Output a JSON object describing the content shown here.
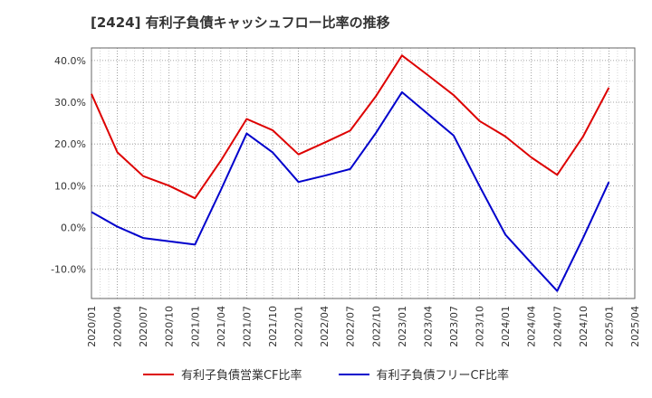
{
  "chart_data": {
    "type": "line",
    "title": "[2424]  有利子負債キャッシュフロー比率の推移",
    "xlabel": "",
    "ylabel": "",
    "x_ticks": [
      "2020/01",
      "2020/04",
      "2020/07",
      "2020/10",
      "2021/01",
      "2021/04",
      "2021/07",
      "2021/10",
      "2022/01",
      "2022/04",
      "2022/07",
      "2022/10",
      "2023/01",
      "2023/04",
      "2023/07",
      "2023/10",
      "2024/01",
      "2024/04",
      "2024/07",
      "2024/10",
      "2025/01",
      "2025/04"
    ],
    "y_ticks": [
      "-10.0%",
      "0.0%",
      "10.0%",
      "20.0%",
      "30.0%",
      "40.0%"
    ],
    "y_tick_values": [
      -10,
      0,
      10,
      20,
      30,
      40
    ],
    "ylim": [
      -17,
      43
    ],
    "grid": true,
    "legend_position": "bottom",
    "series": [
      {
        "name": "有利子負債営業CF比率",
        "color": "#dd0000",
        "points": [
          [
            "2020/01",
            32.0
          ],
          [
            "2020/04",
            18.0
          ],
          [
            "2020/07",
            12.3
          ],
          [
            "2020/10",
            10.0
          ],
          [
            "2021/01",
            7.0
          ],
          [
            "2021/04",
            16.0
          ],
          [
            "2021/07",
            26.0
          ],
          [
            "2021/10",
            23.3
          ],
          [
            "2022/01",
            17.5
          ],
          [
            "2022/04",
            20.3
          ],
          [
            "2022/07",
            23.2
          ],
          [
            "2022/10",
            31.5
          ],
          [
            "2023/01",
            41.2
          ],
          [
            "2023/04",
            36.5
          ],
          [
            "2023/07",
            31.7
          ],
          [
            "2023/10",
            25.5
          ],
          [
            "2024/01",
            21.8
          ],
          [
            "2024/04",
            16.8
          ],
          [
            "2024/07",
            12.6
          ],
          [
            "2024/10",
            21.8
          ],
          [
            "2025/01",
            33.5
          ]
        ]
      },
      {
        "name": "有利子負債フリーCF比率",
        "color": "#0000cc",
        "points": [
          [
            "2020/01",
            3.7
          ],
          [
            "2020/04",
            0.2
          ],
          [
            "2020/07",
            -2.5
          ],
          [
            "2020/10",
            -3.3
          ],
          [
            "2021/01",
            -4.1
          ],
          [
            "2021/04",
            9.0
          ],
          [
            "2021/07",
            22.5
          ],
          [
            "2021/10",
            18.0
          ],
          [
            "2022/01",
            10.9
          ],
          [
            "2022/04",
            12.4
          ],
          [
            "2022/07",
            14.0
          ],
          [
            "2022/10",
            22.7
          ],
          [
            "2023/01",
            32.4
          ],
          [
            "2023/04",
            27.2
          ],
          [
            "2023/07",
            22.0
          ],
          [
            "2023/10",
            9.9
          ],
          [
            "2024/01",
            -1.7
          ],
          [
            "2024/04",
            -8.5
          ],
          [
            "2024/07",
            -15.2
          ],
          [
            "2024/10",
            -2.5
          ],
          [
            "2025/01",
            10.9
          ]
        ]
      }
    ]
  }
}
